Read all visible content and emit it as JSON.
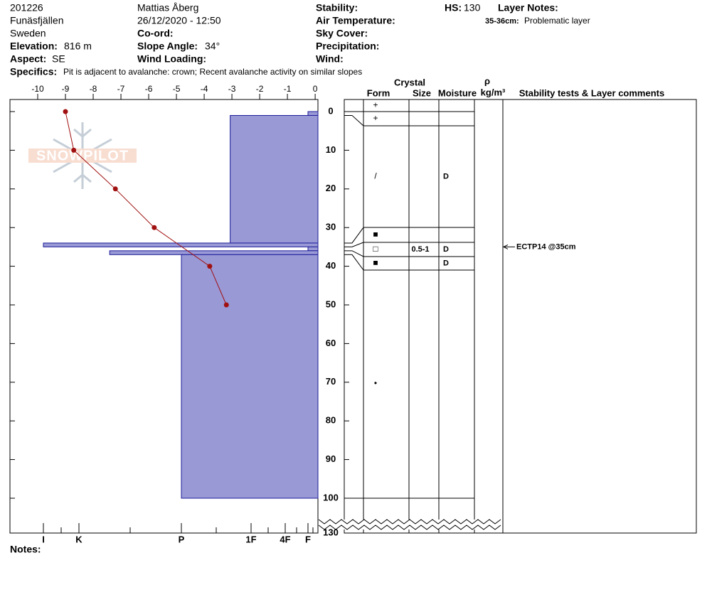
{
  "header": {
    "pit_id": "201226",
    "location": "Funäsfjällen",
    "country": "Sweden",
    "elevation_label": "Elevation:",
    "elevation": "816 m",
    "aspect_label": "Aspect:",
    "aspect": "SE",
    "observer": "Mattias Åberg",
    "datetime": "26/12/2020 - 12:50",
    "coord_label": "Co-ord:",
    "slope_label": "Slope Angle:",
    "slope": "34°",
    "wind_loading_label": "Wind Loading:",
    "stability_label": "Stability:",
    "air_temp_label": "Air Temperature:",
    "sky_label": "Sky Cover:",
    "precip_label": "Precipitation:",
    "wind_label": "Wind:",
    "hs_label": "HS:",
    "hs": 130,
    "layer_notes_label": "Layer Notes:",
    "layer_note_range": "35-36cm:",
    "layer_note": "Problematic layer",
    "specifics_label": "Specifics:",
    "specifics": "Pit is adjacent to avalanche: crown; Recent avalanche activity on similar slopes"
  },
  "watermark": "SNOWPILOT",
  "notes_label": "Notes:",
  "chart_data": {
    "type": "snow-profile",
    "xlim": [
      -11,
      0.1
    ],
    "xticks": [
      -10,
      -9,
      -8,
      -7,
      -6,
      -5,
      -4,
      -3,
      -2,
      -1,
      0
    ],
    "ylim": [
      0,
      130
    ],
    "yticks": [
      0,
      10,
      20,
      30,
      40,
      50,
      60,
      70,
      80,
      90,
      100,
      130
    ],
    "temperature": {
      "depth": [
        0,
        10,
        20,
        30,
        40,
        50
      ],
      "values": [
        -9,
        -8.7,
        -7.2,
        -5.8,
        -3.8,
        -3.2
      ],
      "color": "#a01010"
    },
    "hardness_ticks": [
      {
        "value": 6,
        "label": "I"
      },
      {
        "value": 5,
        "label": "K"
      },
      {
        "value": 4,
        "label": "P"
      },
      {
        "value": 3,
        "label": "1F"
      },
      {
        "value": 2,
        "label": "4F"
      },
      {
        "value": 1,
        "label": "F"
      }
    ],
    "layer_color": "#9999d6",
    "layers": [
      {
        "top": 0,
        "bottom": 1,
        "hardness": 1
      },
      {
        "top": 1,
        "bottom": 34,
        "hardness": 3.3
      },
      {
        "top": 34,
        "bottom": 35,
        "hardness": 6
      },
      {
        "top": 35,
        "bottom": 36,
        "hardness": 1
      },
      {
        "top": 36,
        "bottom": 37,
        "hardness": 4.7
      },
      {
        "top": 37,
        "bottom": 100,
        "hardness": 4
      }
    ]
  },
  "table": {
    "crystal": "Crystal",
    "form": "Form",
    "size": "Size",
    "moisture": "Moisture",
    "rho": "ρ",
    "density_unit": "kg/m³",
    "comments": "Stability tests & Layer comments",
    "rows": [
      {
        "form": "+"
      },
      {
        "form": "+"
      },
      {
        "form": "/",
        "moisture": "D"
      },
      {
        "form": "■"
      },
      {
        "form": "□",
        "size": "0.5-1",
        "moisture": "D"
      },
      {
        "form": "■",
        "moisture": "D"
      },
      {
        "form": "•"
      }
    ],
    "stability_test": {
      "label": "ECTP14 @35cm",
      "depth": 35
    }
  }
}
